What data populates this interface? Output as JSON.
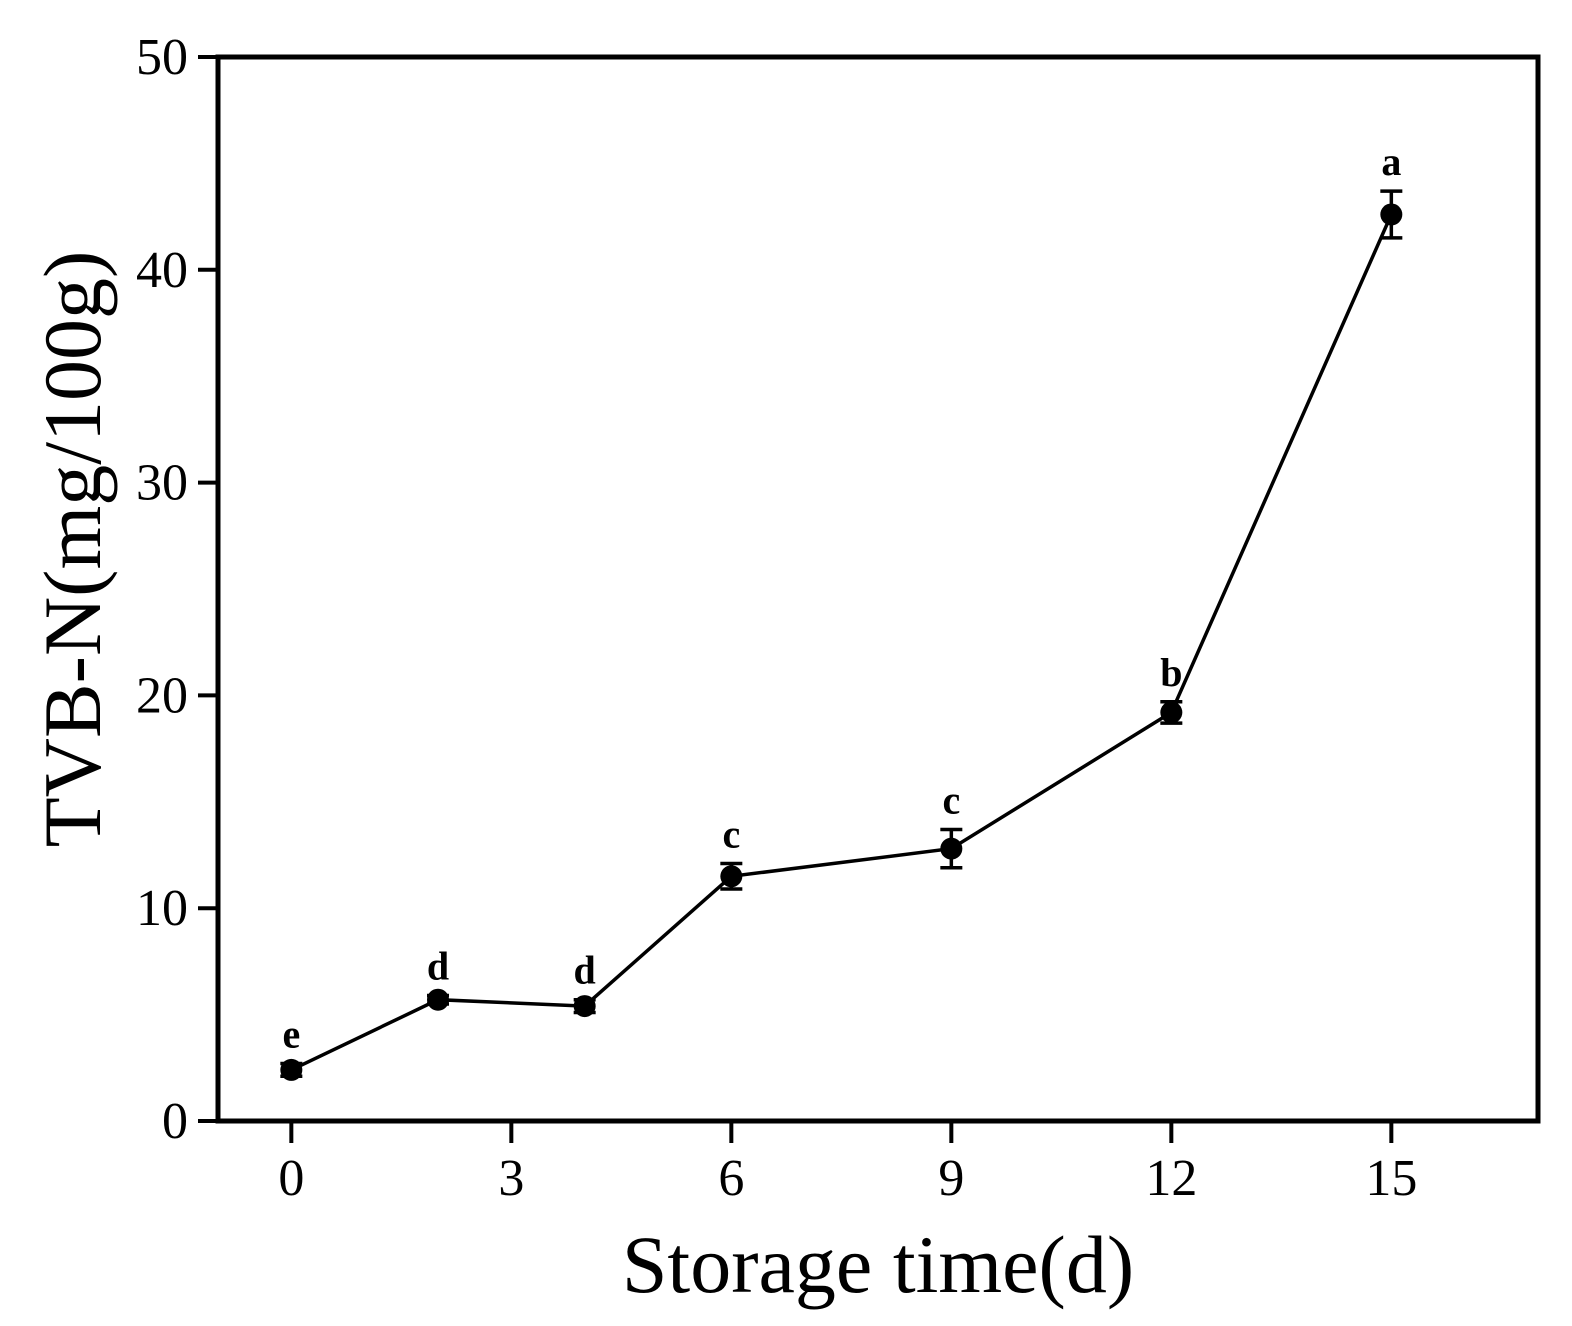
{
  "chart_data": {
    "type": "line",
    "title": "",
    "xlabel": "Storage time(d)",
    "ylabel": "TVB-N(mg/100g)",
    "xlim": [
      -1,
      17
    ],
    "ylim": [
      0,
      50
    ],
    "xticks": [
      0,
      3,
      6,
      9,
      12,
      15
    ],
    "yticks": [
      0,
      10,
      20,
      30,
      40,
      50
    ],
    "grid": false,
    "legend": "none",
    "series": [
      {
        "x": [
          0,
          2,
          4,
          6,
          9,
          12,
          15
        ],
        "y": [
          2.4,
          5.7,
          5.4,
          11.5,
          12.8,
          19.2,
          42.6
        ],
        "err": [
          0.3,
          0.2,
          0.3,
          0.6,
          0.9,
          0.5,
          1.1
        ],
        "labels": [
          "e",
          "d",
          "d",
          "c",
          "c",
          "b",
          "a"
        ],
        "color": "#000000"
      }
    ]
  }
}
